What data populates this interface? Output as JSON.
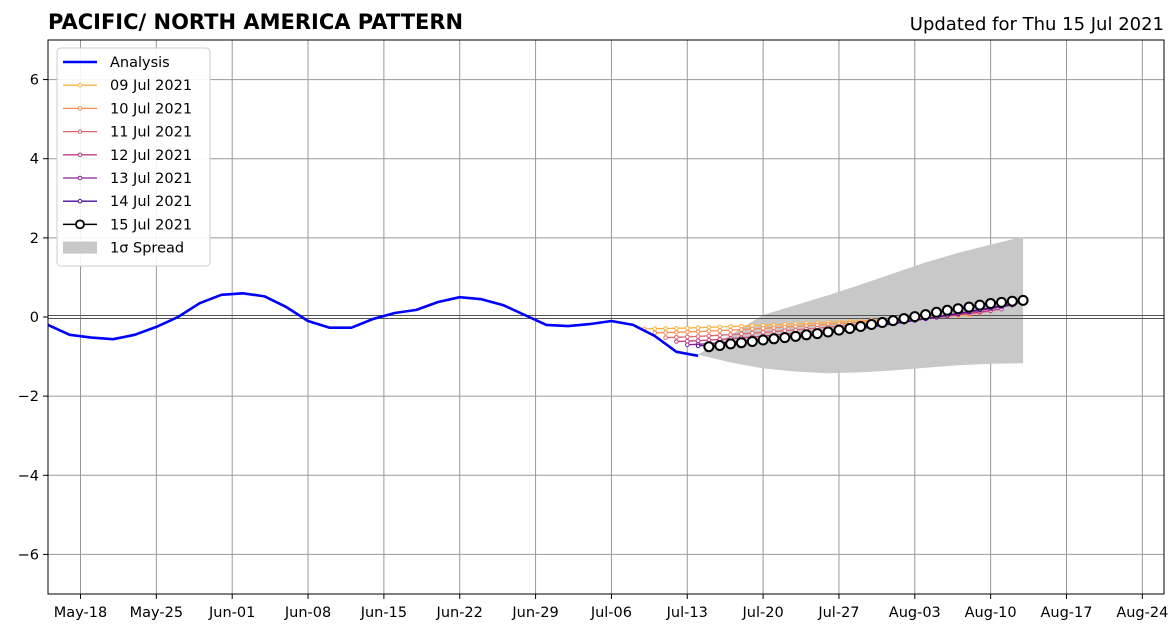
{
  "chart_data": {
    "type": "line",
    "title": "PACIFIC/ NORTH AMERICA PATTERN",
    "subtitle": "Updated for Thu 15 Jul 2021",
    "xlabel": "",
    "ylabel": "",
    "xlim": [
      "2021-05-15",
      "2021-08-26"
    ],
    "ylim": [
      -7,
      7
    ],
    "x_ticks": [
      "May-18",
      "May-25",
      "Jun-01",
      "Jun-08",
      "Jun-15",
      "Jun-22",
      "Jun-29",
      "Jul-06",
      "Jul-13",
      "Jul-20",
      "Jul-27",
      "Aug-03",
      "Aug-10",
      "Aug-17",
      "Aug-24"
    ],
    "x_tick_dates": [
      "2021-05-18",
      "2021-05-25",
      "2021-06-01",
      "2021-06-08",
      "2021-06-15",
      "2021-06-22",
      "2021-06-29",
      "2021-07-06",
      "2021-07-13",
      "2021-07-20",
      "2021-07-27",
      "2021-08-03",
      "2021-08-10",
      "2021-08-17",
      "2021-08-24"
    ],
    "y_ticks": [
      "−6",
      "−4",
      "−2",
      "0",
      "2",
      "4",
      "6"
    ],
    "y_tick_values": [
      -6,
      -4,
      -2,
      0,
      2,
      4,
      6
    ],
    "grid": true,
    "legend_position": "top-left",
    "analysis": {
      "name": "Analysis",
      "color": "#0000ff",
      "x": [
        "2021-05-15",
        "2021-05-17",
        "2021-05-19",
        "2021-05-21",
        "2021-05-23",
        "2021-05-25",
        "2021-05-27",
        "2021-05-29",
        "2021-05-31",
        "2021-06-02",
        "2021-06-04",
        "2021-06-06",
        "2021-06-08",
        "2021-06-10",
        "2021-06-12",
        "2021-06-14",
        "2021-06-16",
        "2021-06-18",
        "2021-06-20",
        "2021-06-22",
        "2021-06-24",
        "2021-06-26",
        "2021-06-28",
        "2021-06-30",
        "2021-07-02",
        "2021-07-04",
        "2021-07-06",
        "2021-07-08",
        "2021-07-10",
        "2021-07-12",
        "2021-07-14"
      ],
      "y": [
        -0.2,
        -0.45,
        -0.52,
        -0.56,
        -0.45,
        -0.25,
        0.0,
        0.35,
        0.56,
        0.6,
        0.52,
        0.25,
        -0.1,
        -0.27,
        -0.27,
        -0.05,
        0.1,
        0.18,
        0.38,
        0.5,
        0.45,
        0.3,
        0.05,
        -0.2,
        -0.23,
        -0.18,
        -0.1,
        -0.2,
        -0.48,
        -0.88,
        -0.98
      ]
    },
    "forecasts": [
      {
        "name": "09 Jul 2021",
        "color": "#fdb042",
        "start": "2021-07-09",
        "end": "2021-08-08",
        "y0": -0.3,
        "y1": 0.05
      },
      {
        "name": "10 Jul 2021",
        "color": "#f88d50",
        "start": "2021-07-10",
        "end": "2021-08-09",
        "y0": -0.4,
        "y1": 0.1
      },
      {
        "name": "11 Jul 2021",
        "color": "#e0656b",
        "start": "2021-07-11",
        "end": "2021-08-10",
        "y0": -0.52,
        "y1": 0.15
      },
      {
        "name": "12 Jul 2021",
        "color": "#c13d80",
        "start": "2021-07-12",
        "end": "2021-08-11",
        "y0": -0.62,
        "y1": 0.2
      },
      {
        "name": "13 Jul 2021",
        "color": "#8a219c",
        "start": "2021-07-13",
        "end": "2021-08-12",
        "y0": -0.7,
        "y1": 0.3
      },
      {
        "name": "14 Jul 2021",
        "color": "#4a0c94",
        "start": "2021-07-14",
        "end": "2021-08-13",
        "y0": -0.73,
        "y1": 0.38
      }
    ],
    "current_forecast": {
      "name": "15 Jul 2021",
      "color": "#000000",
      "start": "2021-07-15",
      "end": "2021-08-13",
      "y": [
        -0.75,
        -0.72,
        -0.68,
        -0.65,
        -0.62,
        -0.58,
        -0.55,
        -0.52,
        -0.49,
        -0.45,
        -0.42,
        -0.38,
        -0.33,
        -0.29,
        -0.24,
        -0.19,
        -0.14,
        -0.09,
        -0.04,
        0.01,
        0.06,
        0.12,
        0.17,
        0.21,
        0.25,
        0.3,
        0.34,
        0.37,
        0.4,
        0.42
      ]
    },
    "spread": {
      "name": "1σ Spread",
      "color": "#c8c8c8",
      "x": [
        "2021-07-14",
        "2021-07-17",
        "2021-07-20",
        "2021-07-23",
        "2021-07-26",
        "2021-07-29",
        "2021-08-01",
        "2021-08-04",
        "2021-08-07",
        "2021-08-10",
        "2021-08-13"
      ],
      "upper": [
        -0.95,
        -0.45,
        0.05,
        0.3,
        0.55,
        0.82,
        1.1,
        1.38,
        1.62,
        1.83,
        2.03
      ],
      "lower": [
        -0.95,
        -1.15,
        -1.3,
        -1.38,
        -1.42,
        -1.4,
        -1.35,
        -1.28,
        -1.22,
        -1.18,
        -1.17
      ]
    },
    "legend": [
      {
        "label": "Analysis",
        "kind": "line",
        "color": "#0000ff"
      },
      {
        "label": "09 Jul 2021",
        "kind": "line-dot",
        "color": "#fdb042"
      },
      {
        "label": "10 Jul 2021",
        "kind": "line-dot",
        "color": "#f88d50"
      },
      {
        "label": "11 Jul 2021",
        "kind": "line-dot",
        "color": "#e0656b"
      },
      {
        "label": "12 Jul 2021",
        "kind": "line-dot",
        "color": "#c13d80"
      },
      {
        "label": "13 Jul 2021",
        "kind": "line-dot",
        "color": "#8a219c"
      },
      {
        "label": "14 Jul 2021",
        "kind": "line-dot",
        "color": "#4a0c94"
      },
      {
        "label": "15 Jul 2021",
        "kind": "line-circle",
        "color": "#000000"
      },
      {
        "label": "1σ Spread",
        "kind": "patch",
        "color": "#c8c8c8"
      }
    ]
  }
}
